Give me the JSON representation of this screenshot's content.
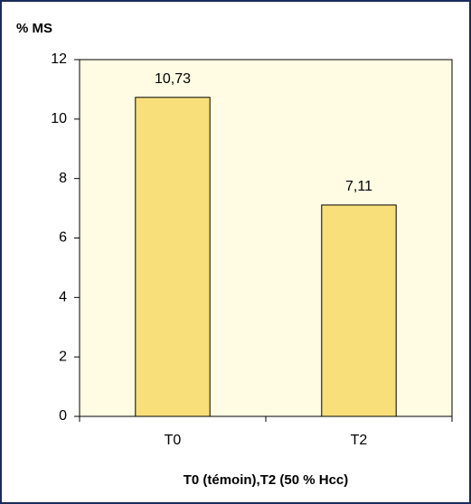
{
  "chart_data": {
    "type": "bar",
    "y_label": "% MS",
    "x_label": "T0 (témoin),T2 (50 % Hcc)",
    "categories": [
      "T0",
      "T2"
    ],
    "values": [
      10.73,
      7.11
    ],
    "value_labels": [
      "10,73",
      "7,11"
    ],
    "color": "#f8df7a",
    "ylim": [
      0,
      12
    ],
    "yticks": [
      0,
      2,
      4,
      6,
      8,
      10,
      12
    ]
  }
}
